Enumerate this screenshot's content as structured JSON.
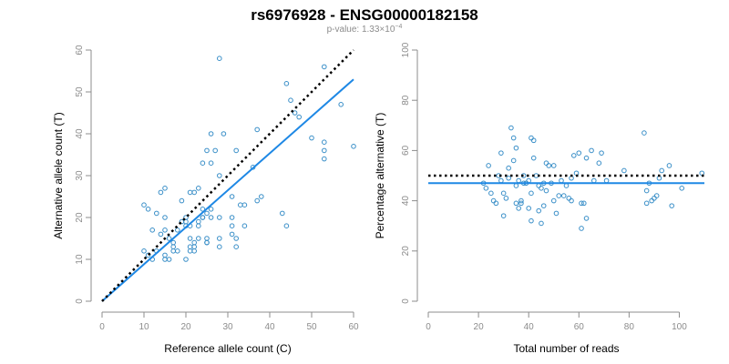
{
  "figure": {
    "title": "rs6976928 - ENSG00000182158",
    "subtitle_prefix": "p-value: 1.33×10",
    "subtitle_exponent": "−4"
  },
  "colors": {
    "points": "#3a8fc8",
    "fit_line": "#1e88e5",
    "reference_line": "#000000",
    "axis": "#8c8c8c"
  },
  "chart_data": [
    {
      "type": "scatter",
      "xlabel": "Reference allele count (C)",
      "ylabel": "Alternative allele count (T)",
      "xlim": [
        0,
        60
      ],
      "ylim": [
        0,
        60
      ],
      "xticks": [
        "0",
        "10",
        "20",
        "30",
        "40",
        "50",
        "60"
      ],
      "yticks": [
        "0",
        "10",
        "20",
        "30",
        "40",
        "50",
        "60"
      ],
      "grid": false,
      "points": [
        [
          28,
          58
        ],
        [
          53,
          56
        ],
        [
          44,
          52
        ],
        [
          45,
          48
        ],
        [
          46,
          45
        ],
        [
          47,
          44
        ],
        [
          53,
          38
        ],
        [
          53,
          36
        ],
        [
          53,
          34
        ],
        [
          57,
          47
        ],
        [
          60,
          37
        ],
        [
          50,
          39
        ],
        [
          37,
          41
        ],
        [
          26,
          40
        ],
        [
          29,
          40
        ],
        [
          25,
          36
        ],
        [
          27,
          36
        ],
        [
          32,
          36
        ],
        [
          26,
          33
        ],
        [
          24,
          33
        ],
        [
          28,
          30
        ],
        [
          36,
          32
        ],
        [
          31,
          25
        ],
        [
          33,
          23
        ],
        [
          34,
          23
        ],
        [
          37,
          24
        ],
        [
          38,
          25
        ],
        [
          15,
          27
        ],
        [
          14,
          26
        ],
        [
          21,
          26
        ],
        [
          22,
          26
        ],
        [
          23,
          27
        ],
        [
          19,
          24
        ],
        [
          11,
          22
        ],
        [
          10,
          23
        ],
        [
          13,
          21
        ],
        [
          15,
          20
        ],
        [
          24,
          22
        ],
        [
          26,
          22
        ],
        [
          25,
          21
        ],
        [
          24,
          20
        ],
        [
          23,
          19
        ],
        [
          20,
          20
        ],
        [
          20,
          19
        ],
        [
          19,
          19
        ],
        [
          20,
          18
        ],
        [
          21,
          18
        ],
        [
          23,
          18
        ],
        [
          24,
          20
        ],
        [
          26,
          20
        ],
        [
          28,
          20
        ],
        [
          31,
          20
        ],
        [
          31,
          18
        ],
        [
          25,
          15
        ],
        [
          18,
          17
        ],
        [
          12,
          17
        ],
        [
          15,
          17
        ],
        [
          14,
          16
        ],
        [
          16,
          15
        ],
        [
          17,
          14
        ],
        [
          17,
          13
        ],
        [
          17,
          12
        ],
        [
          21,
          15
        ],
        [
          22,
          13
        ],
        [
          23,
          15
        ],
        [
          22,
          14
        ],
        [
          25,
          14
        ],
        [
          28,
          15
        ],
        [
          28,
          13
        ],
        [
          31,
          16
        ],
        [
          32,
          15
        ],
        [
          32,
          13
        ],
        [
          34,
          18
        ],
        [
          44,
          18
        ],
        [
          43,
          21
        ],
        [
          10,
          12
        ],
        [
          13,
          12
        ],
        [
          11,
          11
        ],
        [
          12,
          10
        ],
        [
          15,
          11
        ],
        [
          16,
          10
        ],
        [
          15,
          10
        ],
        [
          18,
          12
        ],
        [
          20,
          10
        ],
        [
          21,
          12
        ],
        [
          21,
          13
        ],
        [
          22,
          12
        ],
        [
          25,
          14
        ]
      ],
      "fit_line": {
        "x": [
          0,
          60
        ],
        "y": [
          0,
          53
        ]
      },
      "reference_line": {
        "x": [
          0,
          60
        ],
        "y": [
          0,
          60
        ]
      }
    },
    {
      "type": "scatter",
      "xlabel": "Total number of reads",
      "ylabel": "Percentage alternative (T)",
      "xlim": [
        0,
        110
      ],
      "ylim": [
        0,
        100
      ],
      "xticks": [
        "0",
        "20",
        "40",
        "60",
        "80",
        "100"
      ],
      "yticks": [
        "0",
        "20",
        "40",
        "60",
        "80",
        "100"
      ],
      "grid": false,
      "points": [
        [
          22,
          47
        ],
        [
          23,
          45
        ],
        [
          24,
          54
        ],
        [
          25,
          43
        ],
        [
          26,
          40
        ],
        [
          27,
          39
        ],
        [
          28,
          50
        ],
        [
          29,
          48
        ],
        [
          29,
          59
        ],
        [
          30,
          43
        ],
        [
          30,
          34
        ],
        [
          31,
          41
        ],
        [
          32,
          49
        ],
        [
          32,
          53
        ],
        [
          33,
          69
        ],
        [
          34,
          65
        ],
        [
          34,
          56
        ],
        [
          35,
          61
        ],
        [
          35,
          46
        ],
        [
          35,
          39
        ],
        [
          36,
          37
        ],
        [
          36,
          48
        ],
        [
          37,
          39
        ],
        [
          37,
          40
        ],
        [
          38,
          47
        ],
        [
          38,
          50
        ],
        [
          39,
          47
        ],
        [
          40,
          48
        ],
        [
          40,
          37
        ],
        [
          41,
          43
        ],
        [
          41,
          32
        ],
        [
          41,
          65
        ],
        [
          42,
          64
        ],
        [
          42,
          57
        ],
        [
          43,
          50
        ],
        [
          44,
          36
        ],
        [
          44,
          46
        ],
        [
          45,
          45
        ],
        [
          45,
          31
        ],
        [
          46,
          47
        ],
        [
          46,
          38
        ],
        [
          47,
          44
        ],
        [
          47,
          55
        ],
        [
          48,
          54
        ],
        [
          49,
          47
        ],
        [
          50,
          54
        ],
        [
          50,
          40
        ],
        [
          51,
          35
        ],
        [
          52,
          42
        ],
        [
          53,
          48
        ],
        [
          54,
          42
        ],
        [
          55,
          46
        ],
        [
          56,
          41
        ],
        [
          57,
          49
        ],
        [
          57,
          40
        ],
        [
          58,
          58
        ],
        [
          59,
          51
        ],
        [
          60,
          59
        ],
        [
          61,
          39
        ],
        [
          61,
          29
        ],
        [
          62,
          39
        ],
        [
          63,
          57
        ],
        [
          63,
          33
        ],
        [
          65,
          60
        ],
        [
          66,
          48
        ],
        [
          68,
          55
        ],
        [
          69,
          59
        ],
        [
          71,
          48
        ],
        [
          78,
          52
        ],
        [
          86,
          67
        ],
        [
          87,
          39
        ],
        [
          87,
          44
        ],
        [
          88,
          47
        ],
        [
          89,
          40
        ],
        [
          90,
          41
        ],
        [
          91,
          42
        ],
        [
          92,
          49
        ],
        [
          93,
          52
        ],
        [
          96,
          54
        ],
        [
          97,
          38
        ],
        [
          101,
          45
        ],
        [
          109,
          51
        ]
      ],
      "fit_line": {
        "x": [
          0,
          110
        ],
        "y": [
          47,
          47
        ]
      },
      "reference_line": {
        "x": [
          0,
          110
        ],
        "y": [
          50,
          50
        ]
      }
    }
  ]
}
